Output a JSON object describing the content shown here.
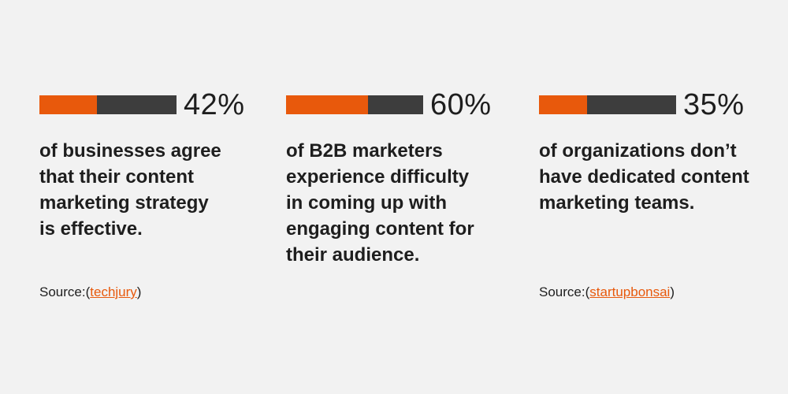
{
  "colors": {
    "accent": "#e8590c",
    "dark": "#3d3d3d",
    "background": "#f2f2f2",
    "text": "#1e1e1e"
  },
  "stats": [
    {
      "percent_value": 42,
      "percent": "42%",
      "description": "of businesses agree that their content marketing strategy is effective."
    },
    {
      "percent_value": 60,
      "percent": "60%",
      "description": "of B2B marketers experience difficulty in coming up with engaging content for their audience."
    },
    {
      "percent_value": 35,
      "percent": "35%",
      "description": "of organizations don’t have dedicated content marketing teams."
    }
  ],
  "sources": [
    {
      "prefix": "Source:",
      "open": "(",
      "link": "techjury",
      "close": ")"
    },
    {
      "prefix": "Source:",
      "open": "(",
      "link": "startupbonsai",
      "close": ")"
    }
  ]
}
